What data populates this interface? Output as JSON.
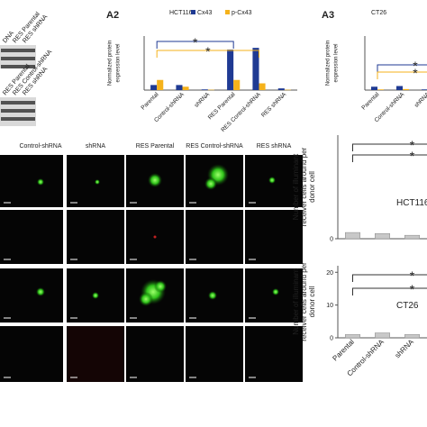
{
  "blot": {
    "top_labels": [
      "DNA",
      "RES Parental",
      "RES shRNA"
    ],
    "mid_labels": [
      "RES Parental",
      "RES Control-shRNA",
      "RES shRNA"
    ]
  },
  "microscopy": {
    "columns": [
      "Control-shRNA",
      "shRNA",
      "RES Parental",
      "RES Control-shRNA",
      "RES shRNA"
    ]
  },
  "chart_data": [
    {
      "type": "bar",
      "panel_label": "A2",
      "title": "HCT116",
      "ylabel": [
        "Normalized protein",
        "expression level"
      ],
      "categories": [
        "Parental",
        "Control-shRNA",
        "shRNA",
        "RES Parental",
        "RES Control-shRNA",
        "RES shRNA"
      ],
      "series": [
        {
          "name": "Cx43",
          "color": "#1f3a93",
          "values": [
            0.15,
            0.15,
            0.02,
            1.2,
            1.25,
            0.05
          ]
        },
        {
          "name": "p-Cx43",
          "color": "#f5b21b",
          "values": [
            0.3,
            0.1,
            0.01,
            0.3,
            0.2,
            0.01
          ]
        }
      ],
      "ylim": [
        0,
        1.6
      ],
      "annotations": [
        {
          "text": "*",
          "color": "#1f3a93"
        },
        {
          "text": "*",
          "color": "#f5b21b"
        }
      ]
    },
    {
      "type": "bar",
      "panel_label": "A3",
      "title": "CT26",
      "ylabel": [
        "Normalized protein",
        "expression level"
      ],
      "categories": [
        "Parental",
        "Control-shRNA",
        "shRNA"
      ],
      "series": [
        {
          "color": "#1f3a93",
          "values": [
            0.1,
            0.12,
            0.02
          ]
        },
        {
          "color": "#f5b21b",
          "values": [
            0.02,
            0.03,
            0.01
          ]
        }
      ],
      "ylim": [
        0,
        1.6
      ],
      "annotations": [
        {
          "text": "*",
          "color": "#1f3a93"
        },
        {
          "text": "*",
          "color": "#f5b21b"
        }
      ]
    },
    {
      "type": "bar",
      "title": "HCT116",
      "ylabel": [
        "Number of illuminant",
        "receiver cells around per",
        "donor cell"
      ],
      "categories": [
        "Parental",
        "Control-shRNA",
        "shRNA"
      ],
      "series": [
        {
          "color": "#c8c8c8",
          "values": [
            1.8,
            1.5,
            1.0
          ]
        }
      ],
      "ylim": [
        0,
        30
      ],
      "yticks": [
        0
      ],
      "annotations": [
        {
          "text": "*",
          "color": "#333333"
        },
        {
          "text": "*",
          "color": "#333333"
        }
      ]
    },
    {
      "type": "bar",
      "title": "CT26",
      "ylabel": [
        "Number of illuminant",
        "receiver cells around per",
        "donor cell"
      ],
      "categories": [
        "Parental",
        "Control-shRNA",
        "shRNA"
      ],
      "series": [
        {
          "color": "#c8c8c8",
          "values": [
            1.0,
            1.5,
            1.0
          ]
        }
      ],
      "ylim": [
        0,
        22
      ],
      "yticks": [
        0,
        10,
        20
      ],
      "annotations": [
        {
          "text": "*",
          "color": "#333333"
        },
        {
          "text": "*",
          "color": "#333333"
        }
      ]
    }
  ]
}
